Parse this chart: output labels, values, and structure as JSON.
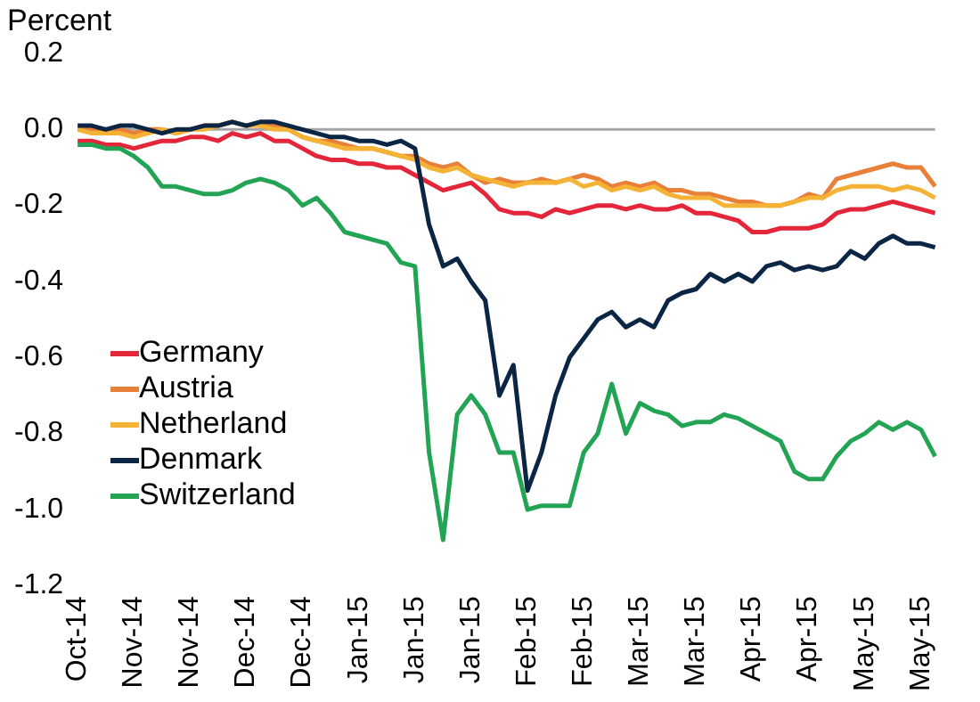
{
  "chart_data": {
    "type": "line",
    "ylabel": "Percent",
    "categories": [
      "Oct-14",
      null,
      null,
      null,
      "Nov-14",
      null,
      null,
      null,
      "Nov-14",
      null,
      null,
      null,
      "Dec-14",
      null,
      null,
      null,
      "Dec-14",
      null,
      null,
      null,
      "Jan-15",
      null,
      null,
      null,
      "Jan-15",
      null,
      null,
      null,
      "Jan-15",
      null,
      null,
      null,
      "Feb-15",
      null,
      null,
      null,
      "Feb-15",
      null,
      null,
      null,
      "Mar-15",
      null,
      null,
      null,
      "Mar-15",
      null,
      null,
      null,
      "Apr-15",
      null,
      null,
      null,
      "Apr-15",
      null,
      null,
      null,
      "May-15",
      null,
      null,
      null,
      "May-15",
      null
    ],
    "series": [
      {
        "name": "Germany",
        "color": "#e3263a",
        "values": [
          -0.03,
          -0.03,
          -0.04,
          -0.04,
          -0.05,
          -0.04,
          -0.03,
          -0.03,
          -0.02,
          -0.02,
          -0.03,
          -0.01,
          -0.02,
          -0.01,
          -0.03,
          -0.03,
          -0.05,
          -0.07,
          -0.08,
          -0.08,
          -0.09,
          -0.09,
          -0.1,
          -0.1,
          -0.12,
          -0.14,
          -0.16,
          -0.15,
          -0.14,
          -0.17,
          -0.21,
          -0.22,
          -0.22,
          -0.23,
          -0.21,
          -0.22,
          -0.21,
          -0.2,
          -0.2,
          -0.21,
          -0.2,
          -0.21,
          -0.21,
          -0.2,
          -0.22,
          -0.22,
          -0.23,
          -0.24,
          -0.27,
          -0.27,
          -0.26,
          -0.26,
          -0.26,
          -0.25,
          -0.22,
          -0.21,
          -0.21,
          -0.2,
          -0.19,
          -0.2,
          -0.21,
          -0.22
        ]
      },
      {
        "name": "Austria",
        "color": "#e8803a",
        "values": [
          0.0,
          0.0,
          -0.01,
          0.0,
          -0.01,
          0.0,
          0.0,
          -0.01,
          0.0,
          0.01,
          0.01,
          0.02,
          0.01,
          0.02,
          0.01,
          0.0,
          -0.02,
          -0.03,
          -0.03,
          -0.04,
          -0.05,
          -0.05,
          -0.06,
          -0.07,
          -0.07,
          -0.09,
          -0.1,
          -0.09,
          -0.12,
          -0.14,
          -0.13,
          -0.14,
          -0.14,
          -0.13,
          -0.14,
          -0.13,
          -0.12,
          -0.13,
          -0.15,
          -0.14,
          -0.15,
          -0.14,
          -0.16,
          -0.16,
          -0.17,
          -0.17,
          -0.18,
          -0.19,
          -0.19,
          -0.2,
          -0.2,
          -0.19,
          -0.17,
          -0.18,
          -0.13,
          -0.12,
          -0.11,
          -0.1,
          -0.09,
          -0.1,
          -0.1,
          -0.15
        ]
      },
      {
        "name": "Netherland",
        "color": "#f5b335",
        "values": [
          0.0,
          -0.01,
          -0.01,
          -0.01,
          -0.02,
          -0.01,
          0.0,
          -0.01,
          0.0,
          0.0,
          0.01,
          0.02,
          0.01,
          0.01,
          0.0,
          0.0,
          -0.02,
          -0.03,
          -0.04,
          -0.05,
          -0.05,
          -0.05,
          -0.06,
          -0.07,
          -0.08,
          -0.1,
          -0.11,
          -0.1,
          -0.12,
          -0.13,
          -0.14,
          -0.15,
          -0.14,
          -0.14,
          -0.14,
          -0.13,
          -0.15,
          -0.14,
          -0.16,
          -0.15,
          -0.16,
          -0.15,
          -0.17,
          -0.18,
          -0.18,
          -0.18,
          -0.2,
          -0.2,
          -0.2,
          -0.2,
          -0.2,
          -0.19,
          -0.18,
          -0.18,
          -0.16,
          -0.15,
          -0.15,
          -0.15,
          -0.16,
          -0.15,
          -0.16,
          -0.18
        ]
      },
      {
        "name": "Denmark",
        "color": "#0b2545",
        "values": [
          0.01,
          0.01,
          0.0,
          0.01,
          0.01,
          0.0,
          -0.01,
          0.0,
          0.0,
          0.01,
          0.01,
          0.02,
          0.01,
          0.02,
          0.02,
          0.01,
          0.0,
          -0.01,
          -0.02,
          -0.02,
          -0.03,
          -0.03,
          -0.04,
          -0.03,
          -0.05,
          -0.25,
          -0.36,
          -0.34,
          -0.4,
          -0.45,
          -0.7,
          -0.62,
          -0.95,
          -0.85,
          -0.7,
          -0.6,
          -0.55,
          -0.5,
          -0.48,
          -0.52,
          -0.5,
          -0.52,
          -0.45,
          -0.43,
          -0.42,
          -0.38,
          -0.4,
          -0.38,
          -0.4,
          -0.36,
          -0.35,
          -0.37,
          -0.36,
          -0.37,
          -0.36,
          -0.32,
          -0.34,
          -0.3,
          -0.28,
          -0.3,
          -0.3,
          -0.31
        ]
      },
      {
        "name": "Switzerland",
        "color": "#23a455",
        "values": [
          -0.04,
          -0.04,
          -0.05,
          -0.05,
          -0.07,
          -0.1,
          -0.15,
          -0.15,
          -0.16,
          -0.17,
          -0.17,
          -0.16,
          -0.14,
          -0.13,
          -0.14,
          -0.16,
          -0.2,
          -0.18,
          -0.22,
          -0.27,
          -0.28,
          -0.29,
          -0.3,
          -0.35,
          -0.36,
          -0.85,
          -1.08,
          -0.75,
          -0.7,
          -0.75,
          -0.85,
          -0.85,
          -1.0,
          -0.99,
          -0.99,
          -0.99,
          -0.85,
          -0.8,
          -0.67,
          -0.8,
          -0.72,
          -0.74,
          -0.75,
          -0.78,
          -0.77,
          -0.77,
          -0.75,
          -0.76,
          -0.78,
          -0.8,
          -0.82,
          -0.9,
          -0.92,
          -0.92,
          -0.86,
          -0.82,
          -0.8,
          -0.77,
          -0.79,
          -0.77,
          -0.79,
          -0.86
        ]
      }
    ],
    "ylim": [
      -1.2,
      0.2
    ],
    "yticks": [
      0.2,
      {
        "value": 0,
        "label": "0.0"
      },
      -0.2,
      -0.4,
      -0.6,
      -0.8,
      {
        "value": -1,
        "label": "-1.0"
      },
      -1.2
    ],
    "ref_lines": [
      {
        "axis": "y",
        "value": 0,
        "color": "#a6a6a6"
      }
    ],
    "grid": false,
    "legend": "bottom left",
    "marker": "none",
    "line_style": "solid"
  }
}
